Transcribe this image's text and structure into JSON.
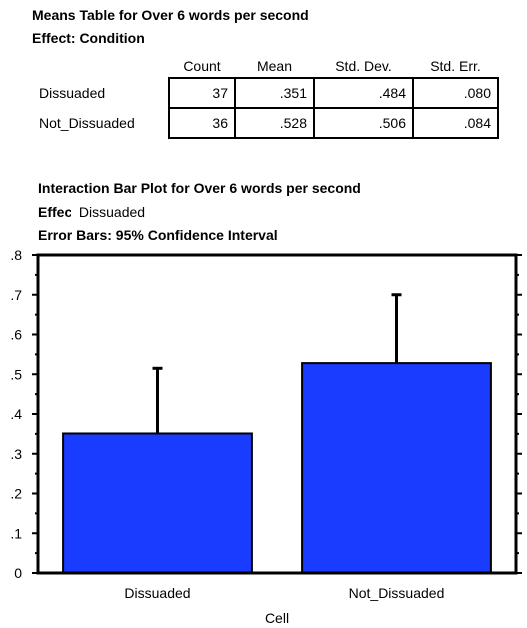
{
  "table": {
    "title": "Means Table for Over 6 words per second",
    "effect_label": "Effect: Condition",
    "columns": [
      "",
      "Count",
      "Mean",
      "Std. Dev.",
      "Std. Err."
    ],
    "rows": [
      {
        "label": "Dissuaded",
        "count": "37",
        "mean": ".351",
        "std_dev": ".484",
        "std_err": ".080"
      },
      {
        "label": "Not_Dissuaded",
        "count": "36",
        "mean": ".528",
        "std_dev": ".506",
        "std_err": ".084"
      }
    ]
  },
  "plot": {
    "title": "Interaction Bar Plot for Over 6 words per second",
    "effect_label": "Effect",
    "effect_value": "Dissuaded",
    "error_bars_label": "Error Bars: 95% Confidence Interval"
  },
  "chart_data": {
    "type": "bar",
    "categories": [
      "Dissuaded",
      "Not_Dissuaded"
    ],
    "values": [
      0.351,
      0.528
    ],
    "error_upper": [
      0.515,
      0.7
    ],
    "xlabel": "Cell",
    "ylabel": "",
    "ylim": [
      0,
      0.8
    ],
    "yticks": [
      0,
      0.1,
      0.2,
      0.3,
      0.4,
      0.5,
      0.6,
      0.7,
      0.8
    ],
    "ytick_labels": [
      "0",
      ".1",
      ".2",
      ".3",
      ".4",
      ".5",
      ".6",
      ".7",
      ".8"
    ],
    "grid": false,
    "bar_color": "#1a3cff"
  }
}
